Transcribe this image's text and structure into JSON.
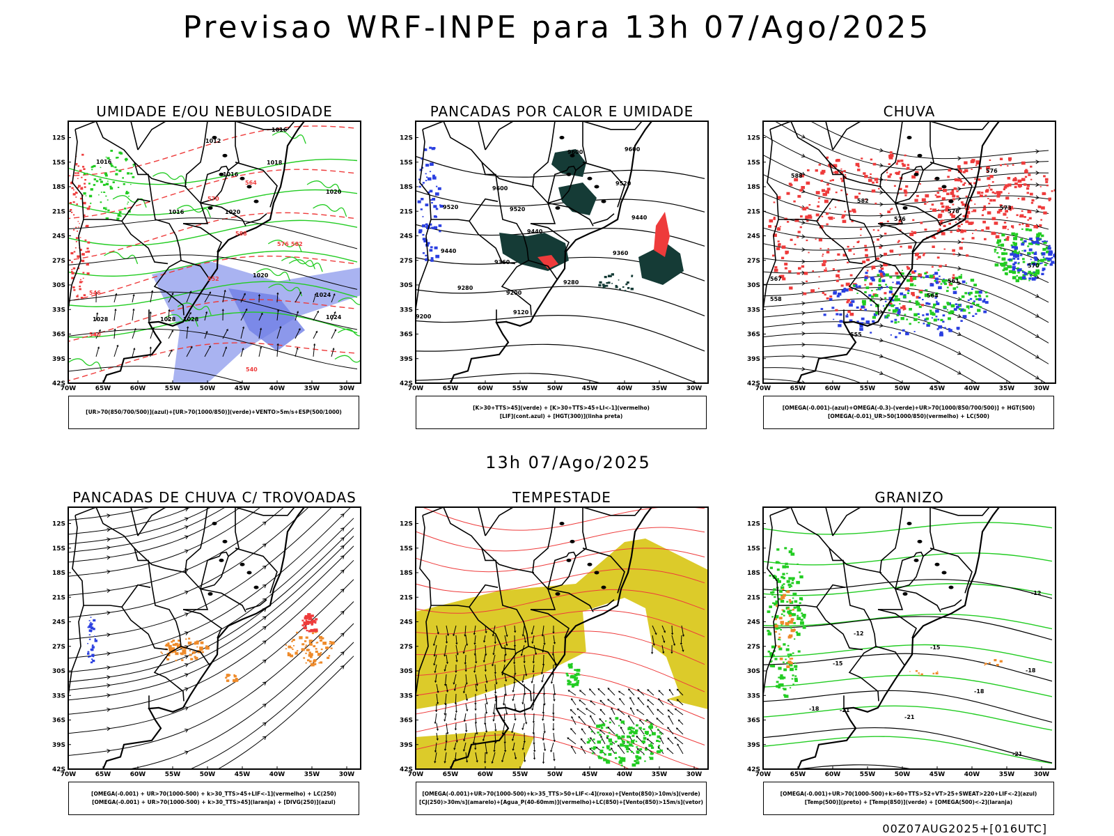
{
  "title": "Previsao WRF-INPE  para 13h 07/Ago/2025",
  "subtitle": "13h 07/Ago/2025",
  "footer": "00Z07AUG2025+[016UTC]",
  "axes": {
    "lat_ticks": [
      "12S",
      "15S",
      "18S",
      "21S",
      "24S",
      "27S",
      "30S",
      "33S",
      "36S",
      "39S",
      "42S"
    ],
    "lon_ticks": [
      "70W",
      "65W",
      "60W",
      "55W",
      "50W",
      "45W",
      "40W",
      "35W",
      "30W"
    ]
  },
  "colors": {
    "blue": "#2a3fe0",
    "green": "#22cc22",
    "red": "#ee3b3b",
    "orange": "#ee8a2a",
    "yellow": "#dccb2a",
    "darkgreen": "#153b36",
    "lightblue": "#9aa6ee",
    "black": "#000000"
  },
  "panels": [
    {
      "id": "umidade",
      "title": "UMIDADE E/OU NEBULOSIDADE",
      "legend": [
        "[UR>70(850/700/500)](azul)+[UR>70(1000/850)](verde)+VENTO>5m/s+ESP(500/1000)"
      ],
      "labels": [
        "1016",
        "1012",
        "1016",
        "1016",
        "1018",
        "1016",
        "1020",
        "1020",
        "1020",
        "1024",
        "1028",
        "1028",
        "1024",
        "1028",
        "564",
        "570",
        "576",
        "582",
        "588",
        "546",
        "552",
        "540",
        "540"
      ]
    },
    {
      "id": "pancadas_calor",
      "title": "PANCADAS POR CALOR E UMIDADE",
      "legend": [
        "[K>30+TTS>45](verde) + [K>30+TTS>45+LI<-1](vermelho)",
        "[LIF](cont.azul) + [HGT(300)](linha preta)"
      ],
      "labels": [
        "9600",
        "9600",
        "9600",
        "9520",
        "9520",
        "9520",
        "9440",
        "9440",
        "9440",
        "9360",
        "9360",
        "9280",
        "9280",
        "9200",
        "9200",
        "9120"
      ]
    },
    {
      "id": "chuva",
      "title": "CHUVA",
      "legend": [
        "[OMEGA(-0.001)-(azul)+OMEGA(-0.3)-(verde)+UR>70(1000/850/700/500)] + HGT(500)",
        "[OMEGA(-0.01)_UR>50(1000/850)(vermelho) + LC(500)"
      ],
      "labels": [
        "588",
        "582",
        "576",
        "576",
        "576",
        "573",
        "570",
        "567",
        "564",
        "561",
        "558",
        "555"
      ]
    },
    {
      "id": "pancadas_trovoadas",
      "title": "PANCADAS DE CHUVA C/ TROVOADAS",
      "legend": [
        "[OMEGA(-0.001) + UR>70(1000-500) + k>30_TTS>45+LIF<-1](vermelho) + LC(250)",
        "[OMEGA(-0.001) + UR>70(1000-500) + k>30_TTS>45](laranja) + [DIVG(250)](azul)"
      ],
      "labels": []
    },
    {
      "id": "tempestade",
      "title": "TEMPESTADE",
      "legend": [
        "[OMEGA(-0.001)+UR>70(1000-500)+k>35_TTS>50+LIF<-4](roxo)+[Vento(850)>10m/s](verde)",
        "[CJ(250)>30m/s](amarelo)+[Agua_P(40-60mm)](vermelho)+LC(850)+[Vento(850)>15m/s](vetor)"
      ],
      "labels": []
    },
    {
      "id": "granizo",
      "title": "GRANIZO",
      "legend": [
        "[OMEGA(-0.001)+UR>70(1000-500)+k>60+TTS>52+VT>25+SWEAT>220+LIF<-2](azul)",
        "[Temp(500)](preto) + [Temp(850)](verde) + [OMEGA(500)<-2](laranja)"
      ],
      "labels": [
        "-12",
        "-12",
        "-15",
        "-15",
        "-18",
        "-18",
        "-18",
        "-21",
        "-21",
        "-21"
      ]
    }
  ]
}
